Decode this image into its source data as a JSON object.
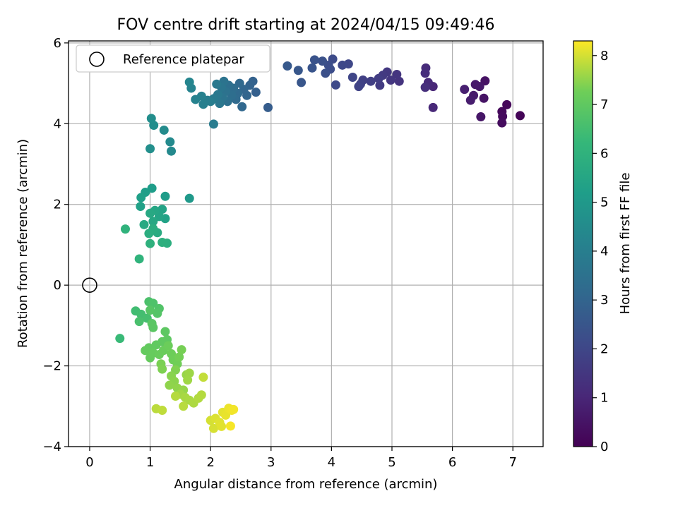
{
  "chart_data": {
    "type": "scatter",
    "title": "FOV centre drift starting at 2024/04/15 09:49:46",
    "xlabel": "Angular distance from reference (arcmin)",
    "ylabel": "Rotation from reference (arcmin)",
    "xlim": [
      -0.35,
      7.5
    ],
    "ylim": [
      -4,
      6.05
    ],
    "xticks": [
      0,
      1,
      2,
      3,
      4,
      5,
      6,
      7
    ],
    "yticks": [
      -4,
      -2,
      0,
      2,
      4,
      6
    ],
    "ytick_labels": [
      "−4",
      "−2",
      "0",
      "2",
      "4",
      "6"
    ],
    "xtick_labels": [
      "0",
      "1",
      "2",
      "3",
      "4",
      "5",
      "6",
      "7"
    ],
    "grid": true,
    "legend": {
      "placement": "upper-left",
      "entries": [
        {
          "label": "Reference platepar",
          "marker": "open-circle"
        }
      ]
    },
    "colorbar": {
      "label": "Hours from first FF file",
      "colormap": "viridis",
      "range": [
        0,
        8.3
      ],
      "ticks": [
        0,
        1,
        2,
        3,
        4,
        5,
        6,
        7,
        8
      ]
    },
    "reference_point": {
      "x": 0,
      "y": 0
    },
    "series": [
      {
        "points": [
          [
            7.12,
            4.2,
            0.1
          ],
          [
            6.9,
            4.47,
            0.15
          ],
          [
            6.82,
            4.3,
            0.2
          ],
          [
            6.83,
            4.18,
            0.25
          ],
          [
            6.82,
            4.02,
            0.3
          ],
          [
            6.54,
            5.06,
            0.45
          ],
          [
            6.52,
            4.63,
            0.5
          ],
          [
            6.47,
            4.17,
            0.55
          ],
          [
            6.45,
            4.92,
            0.6
          ],
          [
            6.38,
            4.97,
            0.65
          ],
          [
            6.35,
            4.7,
            0.7
          ],
          [
            6.3,
            4.58,
            0.75
          ],
          [
            6.2,
            4.85,
            0.8
          ],
          [
            5.68,
            4.92,
            1.0
          ],
          [
            5.68,
            4.4,
            1.05
          ],
          [
            5.6,
            5.02,
            1.1
          ],
          [
            5.56,
            5.38,
            1.15
          ],
          [
            5.55,
            5.25,
            1.2
          ],
          [
            5.55,
            4.9,
            1.25
          ],
          [
            5.12,
            5.05,
            1.4
          ],
          [
            5.08,
            5.22,
            1.45
          ],
          [
            4.98,
            5.08,
            1.5
          ],
          [
            4.92,
            5.28,
            1.55
          ],
          [
            4.85,
            5.2,
            1.6
          ],
          [
            4.8,
            4.95,
            1.65
          ],
          [
            4.78,
            5.12,
            1.7
          ],
          [
            4.65,
            5.05,
            1.75
          ],
          [
            4.52,
            5.08,
            1.8
          ],
          [
            4.48,
            4.98,
            1.85
          ],
          [
            4.45,
            4.92,
            1.9
          ],
          [
            4.35,
            5.15,
            1.95
          ],
          [
            4.28,
            5.48,
            2.0
          ],
          [
            4.18,
            5.45,
            2.05
          ],
          [
            4.07,
            4.96,
            2.1
          ],
          [
            4.02,
            5.6,
            2.15
          ],
          [
            3.98,
            5.35,
            2.2
          ],
          [
            3.95,
            5.45,
            2.25
          ],
          [
            3.9,
            5.25,
            2.3
          ],
          [
            3.85,
            5.55,
            2.35
          ],
          [
            3.72,
            5.58,
            2.4
          ],
          [
            3.68,
            5.38,
            2.45
          ],
          [
            3.5,
            5.02,
            2.5
          ],
          [
            3.45,
            5.32,
            2.55
          ],
          [
            3.27,
            5.43,
            2.6
          ],
          [
            2.95,
            4.4,
            2.75
          ],
          [
            2.75,
            4.78,
            2.85
          ],
          [
            2.7,
            5.05,
            2.9
          ],
          [
            2.65,
            4.95,
            2.95
          ],
          [
            2.6,
            4.7,
            3.0
          ],
          [
            2.55,
            4.85,
            3.05
          ],
          [
            2.52,
            4.42,
            3.1
          ],
          [
            2.48,
            5.0,
            3.15
          ],
          [
            2.45,
            4.75,
            3.2
          ],
          [
            2.42,
            4.6,
            3.25
          ],
          [
            2.38,
            4.88,
            3.3
          ],
          [
            2.35,
            4.7,
            3.35
          ],
          [
            2.3,
            4.95,
            3.4
          ],
          [
            2.28,
            4.55,
            3.45
          ],
          [
            2.25,
            4.8,
            3.5
          ],
          [
            2.22,
            5.05,
            3.55
          ],
          [
            2.2,
            4.65,
            3.6
          ],
          [
            2.18,
            4.9,
            3.65
          ],
          [
            2.15,
            4.5,
            3.7
          ],
          [
            2.12,
            4.72,
            3.75
          ],
          [
            2.1,
            4.98,
            3.8
          ],
          [
            2.05,
            4.62,
            3.85
          ],
          [
            2.05,
            3.99,
            3.9
          ],
          [
            2.0,
            4.55,
            3.95
          ],
          [
            1.95,
            4.58,
            4.0
          ],
          [
            1.88,
            4.48,
            4.05
          ],
          [
            1.85,
            4.68,
            4.1
          ],
          [
            1.75,
            4.6,
            4.15
          ],
          [
            1.68,
            4.88,
            4.2
          ],
          [
            1.65,
            5.03,
            4.25
          ],
          [
            1.35,
            3.32,
            4.4
          ],
          [
            1.33,
            3.55,
            4.45
          ],
          [
            1.23,
            3.84,
            4.5
          ],
          [
            1.06,
            3.96,
            4.55
          ],
          [
            1.02,
            4.13,
            4.6
          ],
          [
            1.0,
            3.38,
            4.65
          ],
          [
            1.65,
            2.15,
            5.0
          ],
          [
            1.25,
            2.2,
            5.1
          ],
          [
            1.03,
            2.4,
            5.15
          ],
          [
            0.92,
            2.3,
            5.2
          ],
          [
            0.85,
            2.17,
            5.25
          ],
          [
            0.84,
            1.95,
            5.3
          ],
          [
            1.25,
            1.65,
            5.35
          ],
          [
            1.2,
            1.88,
            5.4
          ],
          [
            1.15,
            1.7,
            5.45
          ],
          [
            1.08,
            1.85,
            5.5
          ],
          [
            1.05,
            1.58,
            5.55
          ],
          [
            1.0,
            1.78,
            5.6
          ],
          [
            0.9,
            1.5,
            5.65
          ],
          [
            1.12,
            1.3,
            5.7
          ],
          [
            1.05,
            1.4,
            5.75
          ],
          [
            0.98,
            1.28,
            5.8
          ],
          [
            1.28,
            1.04,
            5.85
          ],
          [
            1.2,
            1.06,
            5.9
          ],
          [
            1.0,
            1.03,
            5.95
          ],
          [
            0.59,
            1.39,
            6.0
          ],
          [
            0.82,
            0.65,
            6.05
          ],
          [
            0.5,
            -1.32,
            6.3
          ],
          [
            0.76,
            -0.64,
            6.45
          ],
          [
            0.85,
            -0.72,
            6.5
          ],
          [
            0.95,
            -0.82,
            6.55
          ],
          [
            0.82,
            -0.9,
            6.6
          ],
          [
            0.98,
            -0.41,
            6.65
          ],
          [
            1.05,
            -0.45,
            6.7
          ],
          [
            1.15,
            -0.58,
            6.75
          ],
          [
            1.12,
            -0.7,
            6.8
          ],
          [
            1.0,
            -0.62,
            6.85
          ],
          [
            1.03,
            -0.95,
            6.9
          ],
          [
            1.05,
            -1.05,
            6.92
          ],
          [
            1.25,
            -1.15,
            6.95
          ],
          [
            1.28,
            -1.35,
            6.97
          ],
          [
            1.2,
            -1.4,
            7.0
          ],
          [
            1.1,
            -1.48,
            7.02
          ],
          [
            0.98,
            -1.55,
            7.05
          ],
          [
            0.92,
            -1.62,
            7.08
          ],
          [
            1.0,
            -1.8,
            7.1
          ],
          [
            1.05,
            -1.68,
            7.12
          ],
          [
            1.15,
            -1.72,
            7.15
          ],
          [
            1.22,
            -1.62,
            7.18
          ],
          [
            1.3,
            -1.5,
            7.2
          ],
          [
            1.35,
            -1.7,
            7.22
          ],
          [
            1.38,
            -1.85,
            7.25
          ],
          [
            1.45,
            -1.95,
            7.28
          ],
          [
            1.48,
            -1.78,
            7.3
          ],
          [
            1.52,
            -1.6,
            7.32
          ],
          [
            1.18,
            -1.95,
            7.35
          ],
          [
            1.2,
            -2.08,
            7.38
          ],
          [
            1.42,
            -2.1,
            7.4
          ],
          [
            1.35,
            -2.25,
            7.45
          ],
          [
            1.4,
            -2.38,
            7.48
          ],
          [
            1.32,
            -2.48,
            7.5
          ],
          [
            1.45,
            -2.55,
            7.52
          ],
          [
            1.55,
            -2.6,
            7.55
          ],
          [
            1.6,
            -2.22,
            7.57
          ],
          [
            1.65,
            -2.18,
            7.6
          ],
          [
            1.62,
            -2.35,
            7.62
          ],
          [
            1.5,
            -2.7,
            7.65
          ],
          [
            1.58,
            -2.78,
            7.68
          ],
          [
            1.65,
            -2.85,
            7.7
          ],
          [
            1.72,
            -2.92,
            7.72
          ],
          [
            1.8,
            -2.8,
            7.75
          ],
          [
            1.85,
            -2.72,
            7.77
          ],
          [
            1.42,
            -2.75,
            7.78
          ],
          [
            1.55,
            -3.0,
            7.8
          ],
          [
            1.1,
            -3.06,
            7.82
          ],
          [
            1.2,
            -3.1,
            7.85
          ],
          [
            1.88,
            -2.28,
            7.88
          ],
          [
            2.0,
            -3.35,
            8.0
          ],
          [
            2.05,
            -3.55,
            8.02
          ],
          [
            2.08,
            -3.3,
            8.05
          ],
          [
            2.15,
            -3.4,
            8.08
          ],
          [
            2.18,
            -3.5,
            8.1
          ],
          [
            2.2,
            -3.15,
            8.12
          ],
          [
            2.25,
            -3.22,
            8.15
          ],
          [
            2.3,
            -3.05,
            8.18
          ],
          [
            2.35,
            -3.1,
            8.2
          ],
          [
            2.38,
            -3.08,
            8.22
          ],
          [
            2.33,
            -3.49,
            8.25
          ]
        ]
      }
    ]
  }
}
